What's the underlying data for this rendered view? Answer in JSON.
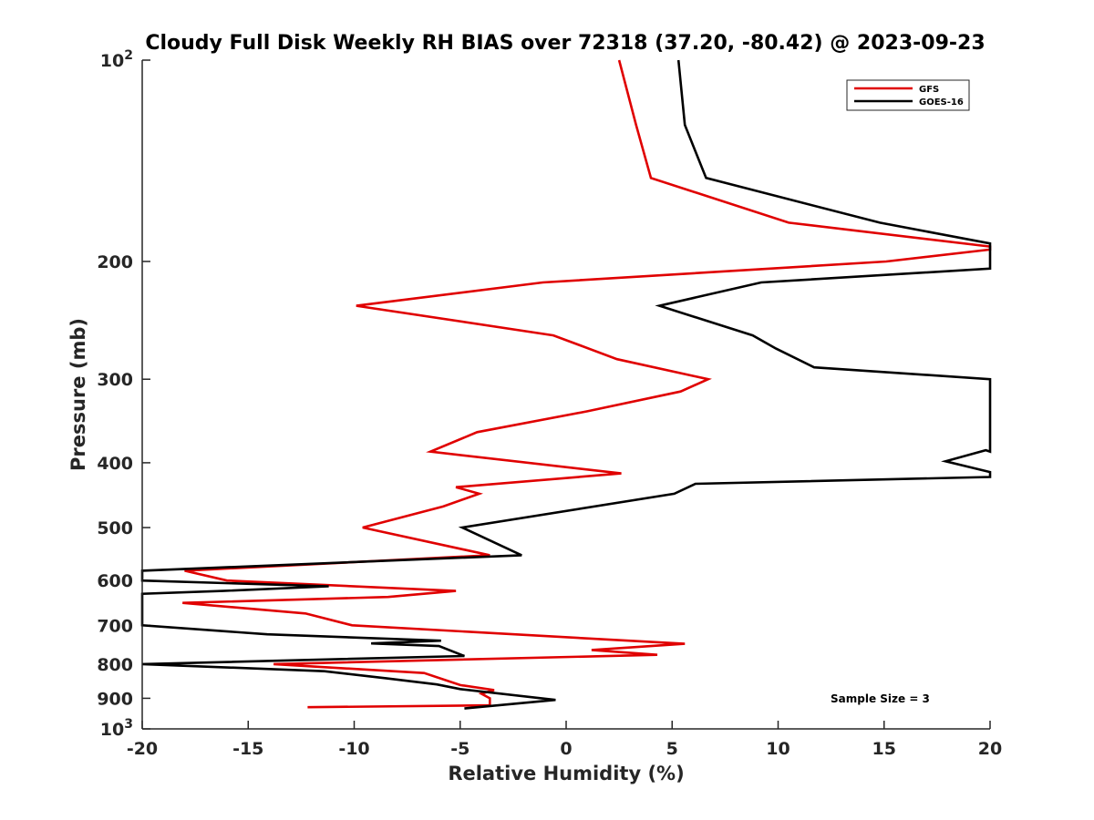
{
  "chart_data": {
    "type": "line",
    "title": "Cloudy Full Disk Weekly RH BIAS over 72318 (37.20, -80.42) @ 2023-09-23",
    "xlabel": "Relative Humidity (%)",
    "ylabel": "Pressure (mb)",
    "xlim": [
      -20,
      20
    ],
    "ylim": [
      100,
      1000
    ],
    "yscale": "log",
    "x_ticks": [
      -20,
      -15,
      -10,
      -5,
      0,
      5,
      10,
      15,
      20
    ],
    "x_tick_labels": [
      "-20",
      "-15",
      "-10",
      "-5",
      "0",
      "5",
      "10",
      "15",
      "20"
    ],
    "y_ticks": [
      100,
      200,
      300,
      400,
      500,
      600,
      700,
      800,
      900,
      1000
    ],
    "y_tick_labels": [
      {
        "base": "10",
        "exp": "2"
      },
      {
        "base": "200",
        "exp": ""
      },
      {
        "base": "300",
        "exp": ""
      },
      {
        "base": "400",
        "exp": ""
      },
      {
        "base": "500",
        "exp": ""
      },
      {
        "base": "600",
        "exp": ""
      },
      {
        "base": "700",
        "exp": ""
      },
      {
        "base": "800",
        "exp": ""
      },
      {
        "base": "900",
        "exp": ""
      },
      {
        "base": "10",
        "exp": "3"
      }
    ],
    "legend_position": "top-right",
    "annotation": "Sample Size = 3",
    "series": [
      {
        "name": "GFS",
        "color": "#e00000",
        "points": [
          [
            2.5,
            100
          ],
          [
            3.3,
            125
          ],
          [
            4.0,
            150
          ],
          [
            10.5,
            175
          ],
          [
            20,
            190
          ],
          [
            20,
            192
          ],
          [
            15.1,
            200
          ],
          [
            -1.1,
            215
          ],
          [
            -9.9,
            233
          ],
          [
            -0.6,
            258
          ],
          [
            2.4,
            280
          ],
          [
            6.7,
            300
          ],
          [
            5.4,
            313
          ],
          [
            1.0,
            335
          ],
          [
            -4.2,
            360
          ],
          [
            -6.4,
            385
          ],
          [
            2.6,
            415
          ],
          [
            -5.2,
            435
          ],
          [
            -4.1,
            445
          ],
          [
            -5.8,
            465
          ],
          [
            -9.6,
            500
          ],
          [
            -3.6,
            550
          ],
          [
            -18.0,
            580
          ],
          [
            -16.0,
            600
          ],
          [
            -5.2,
            622
          ],
          [
            -8.4,
            635
          ],
          [
            -18.1,
            648
          ],
          [
            -12.3,
            672
          ],
          [
            -10.1,
            700
          ],
          [
            5.6,
            746
          ],
          [
            1.2,
            762
          ],
          [
            4.3,
            775
          ],
          [
            -13.8,
            800
          ],
          [
            -6.7,
            825
          ],
          [
            -5.0,
            860
          ],
          [
            -3.4,
            875
          ],
          [
            -4.0,
            886
          ],
          [
            -3.6,
            900
          ],
          [
            -3.6,
            922
          ],
          [
            -12.2,
            928
          ]
        ]
      },
      {
        "name": "GOES-16",
        "color": "#000000",
        "points": [
          [
            5.3,
            100
          ],
          [
            5.6,
            125
          ],
          [
            6.6,
            150
          ],
          [
            14.8,
            175
          ],
          [
            20,
            188
          ],
          [
            20,
            205
          ],
          [
            9.2,
            215
          ],
          [
            4.4,
            233
          ],
          [
            8.8,
            258
          ],
          [
            9.9,
            270
          ],
          [
            11.7,
            288
          ],
          [
            20,
            300
          ],
          [
            20,
            385
          ],
          [
            19.8,
            383
          ],
          [
            17.9,
            398
          ],
          [
            20,
            413
          ],
          [
            20,
            420
          ],
          [
            6.1,
            430
          ],
          [
            5.1,
            445
          ],
          [
            -4.9,
            500
          ],
          [
            -2.1,
            550
          ],
          [
            -20,
            580
          ],
          [
            -20,
            600
          ],
          [
            -11.2,
            612
          ],
          [
            -16.2,
            622
          ],
          [
            -20,
            628
          ],
          [
            -20,
            700
          ],
          [
            -14.1,
            722
          ],
          [
            -5.9,
            738
          ],
          [
            -9.2,
            745
          ],
          [
            -6.0,
            752
          ],
          [
            -4.8,
            778
          ],
          [
            -20,
            800
          ],
          [
            -11.4,
            820
          ],
          [
            -8.5,
            840
          ],
          [
            -6.1,
            858
          ],
          [
            -5.0,
            872
          ],
          [
            -0.5,
            905
          ],
          [
            -4.8,
            932
          ]
        ]
      }
    ]
  }
}
